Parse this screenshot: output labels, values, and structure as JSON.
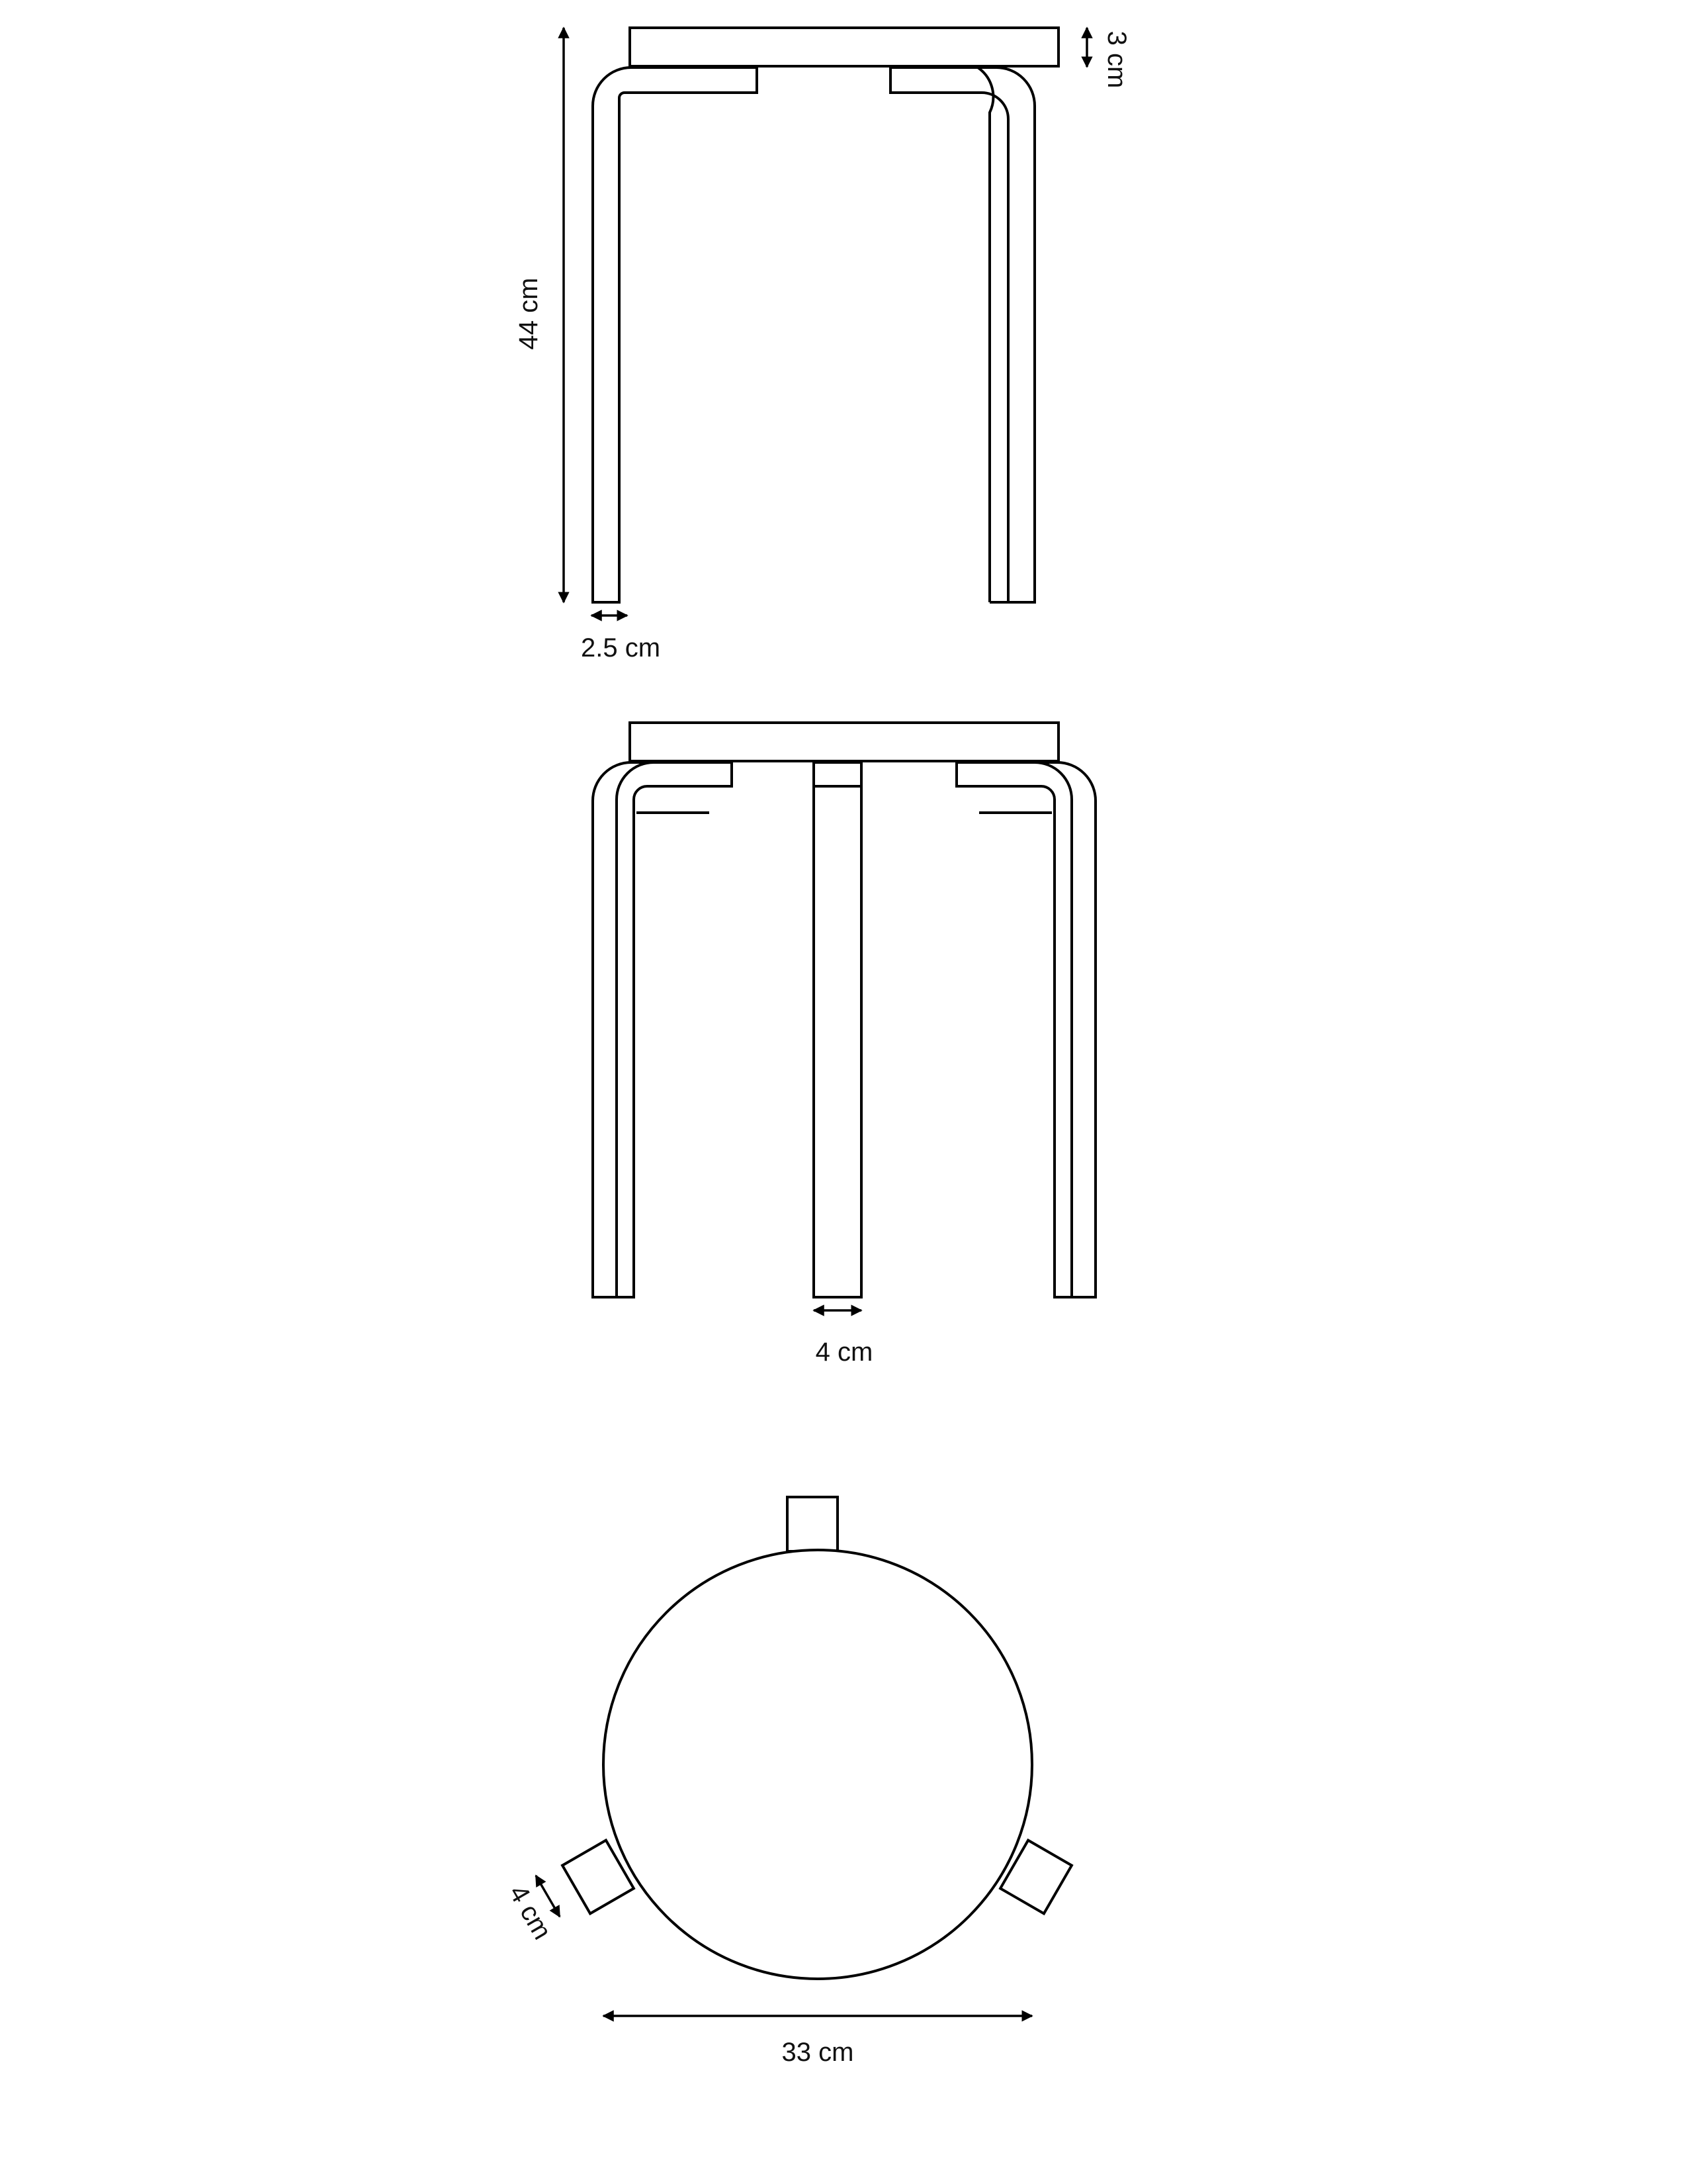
{
  "diagram": {
    "side_view": {
      "seat_thickness_label": "3 cm",
      "height_label": "44 cm",
      "leg_thickness_label": "2.5 cm"
    },
    "front_view": {
      "leg_width_label": "4 cm"
    },
    "top_view": {
      "leg_width_label": "4 cm",
      "diameter_label": "33 cm"
    }
  }
}
